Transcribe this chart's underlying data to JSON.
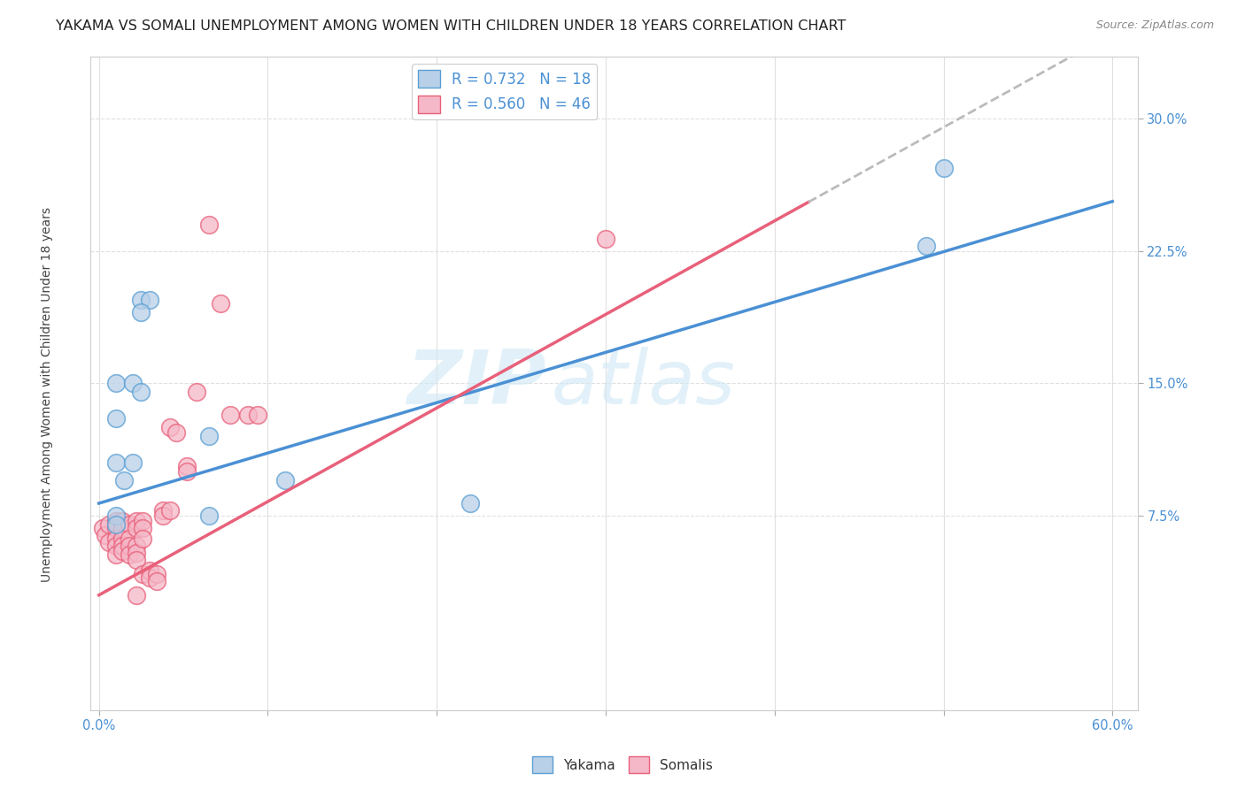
{
  "title": "YAKAMA VS SOMALI UNEMPLOYMENT AMONG WOMEN WITH CHILDREN UNDER 18 YEARS CORRELATION CHART",
  "source": "Source: ZipAtlas.com",
  "ylabel": "Unemployment Among Women with Children Under 18 years",
  "xlabel": "",
  "xlim": [
    -0.005,
    0.615
  ],
  "ylim": [
    -0.035,
    0.335
  ],
  "xticks": [
    0.0,
    0.1,
    0.2,
    0.3,
    0.4,
    0.5,
    0.6
  ],
  "yticks": [
    0.075,
    0.15,
    0.225,
    0.3
  ],
  "ytick_labels": [
    "7.5%",
    "15.0%",
    "22.5%",
    "30.0%"
  ],
  "xtick_labels_show": [
    0.0,
    0.6
  ],
  "watermark_line1": "ZIP",
  "watermark_line2": "atlas",
  "yakama_R": 0.732,
  "yakama_N": 18,
  "somali_R": 0.56,
  "somali_N": 46,
  "yakama_color": "#b8d0e8",
  "somali_color": "#f5b8c8",
  "yakama_edge_color": "#5a9fd4",
  "somali_edge_color": "#e8607a",
  "yakama_line_color": "#4a90d4",
  "somali_line_color": "#e8607a",
  "yakama_line_intercept": 0.082,
  "yakama_line_slope": 0.285,
  "somali_line_intercept": 0.03,
  "somali_line_slope": 0.53,
  "somali_line_solid_end": 0.42,
  "yakama_scatter": [
    [
      0.01,
      0.15
    ],
    [
      0.02,
      0.15
    ],
    [
      0.025,
      0.197
    ],
    [
      0.01,
      0.13
    ],
    [
      0.03,
      0.197
    ],
    [
      0.025,
      0.19
    ],
    [
      0.025,
      0.145
    ],
    [
      0.01,
      0.105
    ],
    [
      0.02,
      0.105
    ],
    [
      0.015,
      0.095
    ],
    [
      0.065,
      0.12
    ],
    [
      0.01,
      0.075
    ],
    [
      0.01,
      0.07
    ],
    [
      0.065,
      0.075
    ],
    [
      0.11,
      0.095
    ],
    [
      0.22,
      0.082
    ],
    [
      0.49,
      0.228
    ],
    [
      0.5,
      0.272
    ]
  ],
  "somali_scatter": [
    [
      0.002,
      0.068
    ],
    [
      0.004,
      0.064
    ],
    [
      0.006,
      0.07
    ],
    [
      0.006,
      0.06
    ],
    [
      0.01,
      0.072
    ],
    [
      0.01,
      0.068
    ],
    [
      0.01,
      0.062
    ],
    [
      0.01,
      0.058
    ],
    [
      0.01,
      0.053
    ],
    [
      0.014,
      0.072
    ],
    [
      0.014,
      0.068
    ],
    [
      0.014,
      0.062
    ],
    [
      0.014,
      0.058
    ],
    [
      0.014,
      0.055
    ],
    [
      0.018,
      0.07
    ],
    [
      0.018,
      0.062
    ],
    [
      0.018,
      0.058
    ],
    [
      0.018,
      0.053
    ],
    [
      0.022,
      0.072
    ],
    [
      0.022,
      0.068
    ],
    [
      0.022,
      0.058
    ],
    [
      0.022,
      0.054
    ],
    [
      0.022,
      0.05
    ],
    [
      0.026,
      0.072
    ],
    [
      0.026,
      0.068
    ],
    [
      0.026,
      0.062
    ],
    [
      0.026,
      0.042
    ],
    [
      0.03,
      0.044
    ],
    [
      0.03,
      0.04
    ],
    [
      0.034,
      0.042
    ],
    [
      0.034,
      0.038
    ],
    [
      0.038,
      0.078
    ],
    [
      0.038,
      0.075
    ],
    [
      0.042,
      0.078
    ],
    [
      0.042,
      0.125
    ],
    [
      0.046,
      0.122
    ],
    [
      0.052,
      0.103
    ],
    [
      0.052,
      0.1
    ],
    [
      0.058,
      0.145
    ],
    [
      0.065,
      0.24
    ],
    [
      0.072,
      0.195
    ],
    [
      0.078,
      0.132
    ],
    [
      0.088,
      0.132
    ],
    [
      0.094,
      0.132
    ],
    [
      0.3,
      0.232
    ],
    [
      0.022,
      0.03
    ]
  ],
  "background_color": "#ffffff",
  "grid_color": "#e0e0e0",
  "grid_style_top": "--",
  "grid_style_bottom": "--",
  "title_fontsize": 11.5,
  "axis_label_fontsize": 10,
  "tick_fontsize": 10.5,
  "legend_fontsize": 12
}
